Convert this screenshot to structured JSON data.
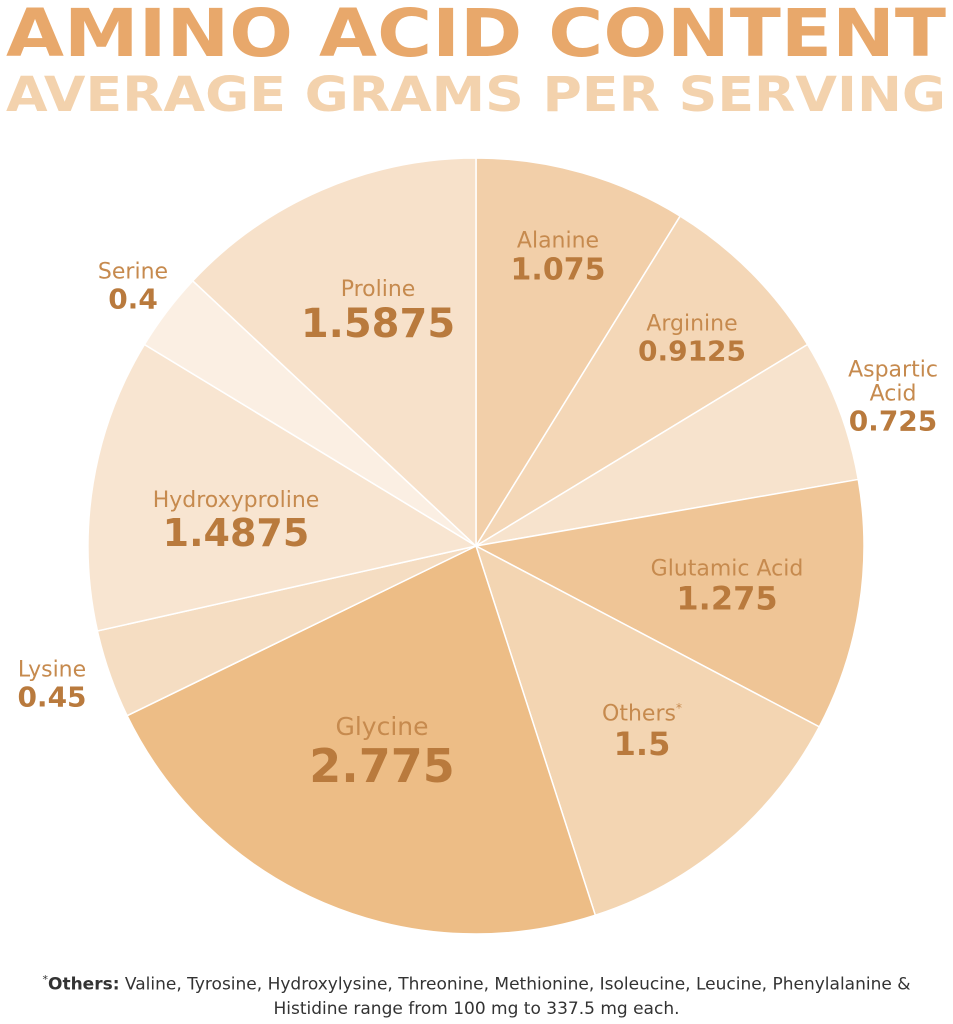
{
  "chart_data": {
    "type": "pie",
    "title": "AMINO ACID CONTENT",
    "subtitle": "AVERAGE GRAMS PER SERVING",
    "categories": [
      "Alanine",
      "Arginine",
      "Aspartic Acid",
      "Glutamic Acid",
      "Others",
      "Glycine",
      "Lysine",
      "Hydroxyproline",
      "Serine",
      "Proline"
    ],
    "values": [
      1.075,
      0.9125,
      0.725,
      1.275,
      1.5,
      2.775,
      0.45,
      1.4875,
      0.4,
      1.5875
    ],
    "colors": [
      "#f2cfa9",
      "#f4d7b7",
      "#f7e3cd",
      "#efc596",
      "#f3d5b2",
      "#edbd86",
      "#f5ddc2",
      "#f8e5d1",
      "#fbefe3",
      "#f7e1ca"
    ],
    "footnote": {
      "marker": "*",
      "label": "Others:",
      "text": "Valine, Tyrosine, Hydroxylysine, Threonine, Methionine, Isoleucine, Leucine, Phenylalanine & Histidine range from 100 mg to 337.5 mg each."
    }
  }
}
